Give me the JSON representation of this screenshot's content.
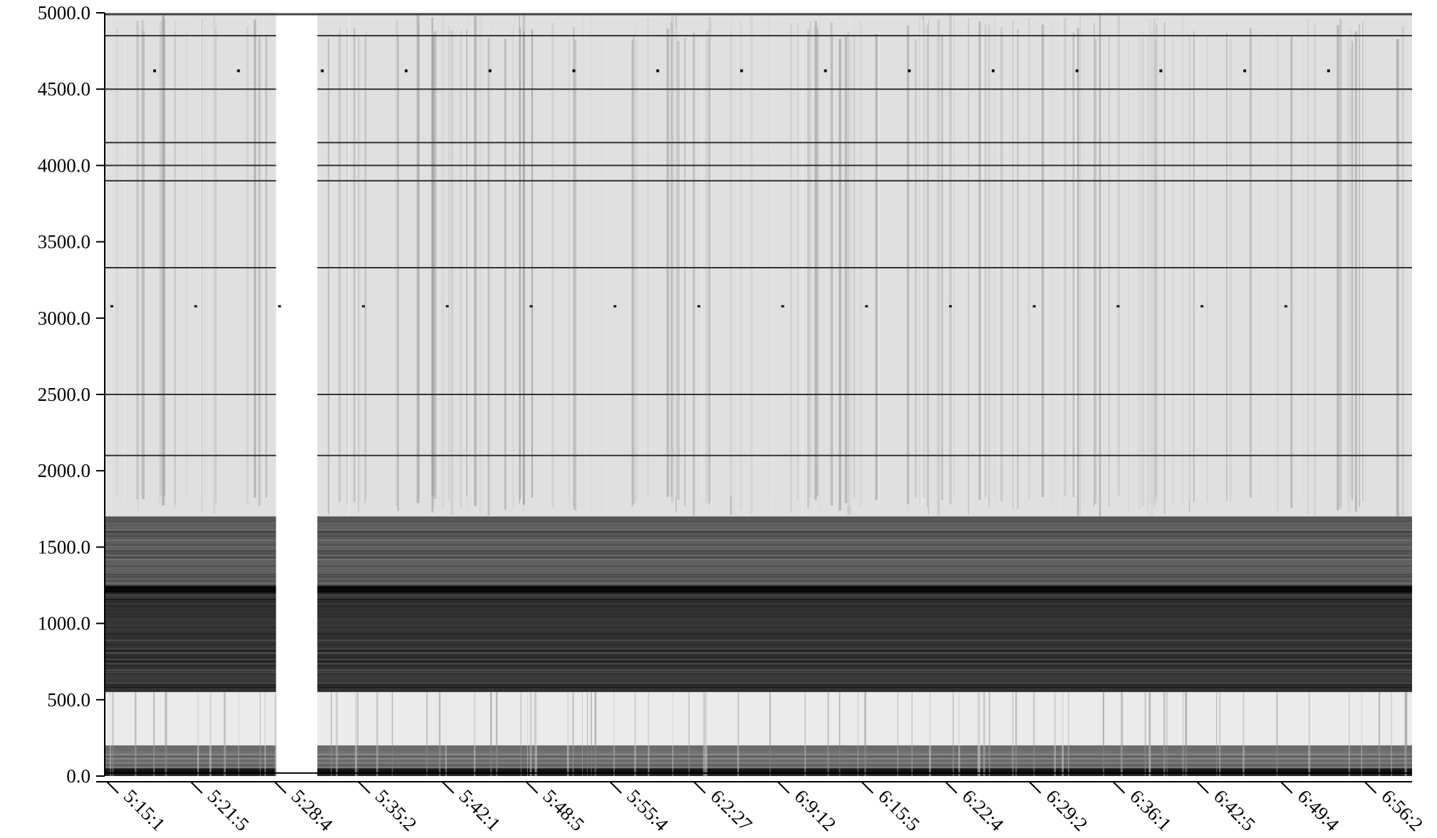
{
  "chart_data": {
    "type": "heatmap",
    "title": "",
    "xlabel": "",
    "ylabel": "",
    "ylim": [
      0,
      5000
    ],
    "y_ticks": [
      "0.0",
      "500.0",
      "1000.0",
      "1500.0",
      "2000.0",
      "2500.0",
      "3000.0",
      "3500.0",
      "4000.0",
      "4500.0",
      "5000.0"
    ],
    "y_tick_values": [
      0,
      500,
      1000,
      1500,
      2000,
      2500,
      3000,
      3500,
      4000,
      4500,
      5000
    ],
    "x_ticks": [
      "5:15:1",
      "5:21:5",
      "5:28:4",
      "5:35:2",
      "5:42:1",
      "5:48:5",
      "5:55:4",
      "6:2:27",
      "6:9:12",
      "6:15:5",
      "6:22:4",
      "6:29:2",
      "6:36:1",
      "6:42:5",
      "6:49:4",
      "6:56:2"
    ],
    "colormap": "grayscale",
    "colors": {
      "low": "#ffffff",
      "high": "#000000",
      "axis": "#000000"
    },
    "gap_columns": "5:28:4",
    "intensity_bands": [
      {
        "from": 0,
        "to": 50,
        "level": 0.9
      },
      {
        "from": 50,
        "to": 200,
        "level": 0.55
      },
      {
        "from": 200,
        "to": 550,
        "level": 0.08
      },
      {
        "from": 550,
        "to": 1200,
        "level": 0.8
      },
      {
        "from": 1200,
        "to": 1250,
        "level": 0.95
      },
      {
        "from": 1250,
        "to": 1700,
        "level": 0.65
      },
      {
        "from": 1700,
        "to": 5000,
        "level": 0.12
      }
    ],
    "persistent_lines": [
      4850,
      4500,
      4150,
      4000,
      3900,
      3330,
      2500,
      2100
    ]
  }
}
